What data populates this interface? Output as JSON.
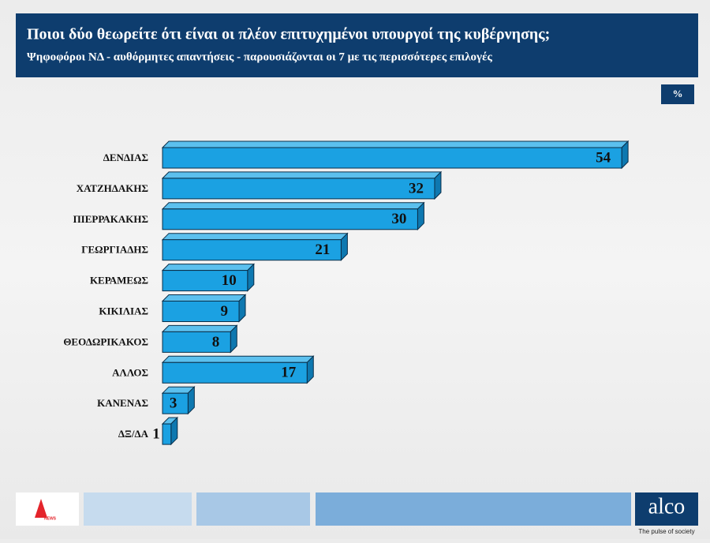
{
  "chart_data": {
    "type": "bar",
    "title": "Ποιοι δύο θεωρείτε ότι είναι οι πλέον επιτυχημένοι υπουργοί της κυβέρνησης;",
    "subtitle": "Ψηφοφόροι ΝΔ - αυθόρμητες απαντήσεις - παρουσιάζονται οι 7 με τις περισσότερες επιλογές",
    "unit": "%",
    "categories": [
      "ΔΕΝΔΙΑΣ",
      "ΧΑΤΖΗΔΑΚΗΣ",
      "ΠΙΕΡΡΑΚΑΚΗΣ",
      "ΓΕΩΡΓΙΑΔΗΣ",
      "ΚΕΡΑΜΕΩΣ",
      "ΚΙΚΙΛΙΑΣ",
      "ΘΕΟΔΩΡΙΚΑΚΟΣ",
      "ΑΛΛΟΣ",
      "ΚΑΝΕΝΑΣ",
      "ΔΞ/ΔΑ"
    ],
    "values": [
      54,
      32,
      30,
      21,
      10,
      9,
      8,
      17,
      3,
      1
    ],
    "color": "#1ba1e2"
  },
  "footer": {
    "logo": "NEWS",
    "brand": "alco",
    "tagline": "The pulse of society"
  }
}
